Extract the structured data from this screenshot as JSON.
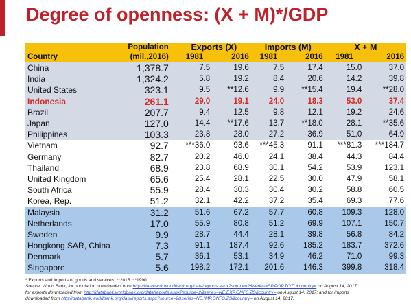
{
  "title": "Degree of openness: (X + M)*/GDP",
  "header": {
    "country": "Country",
    "population_line1": "Population",
    "population_line2": "(mil.,2016)",
    "exports": "Exports (X)",
    "imports": "Imports (M)",
    "xm": "X + M",
    "y1981": "1981",
    "y2016": "2016"
  },
  "rows": [
    {
      "country": "China",
      "pop": "1,378.7",
      "x81": "7.5",
      "x16": "19.6",
      "m81": "7.5",
      "m16": "17.4",
      "t81": "15.0",
      "t16": "37.0",
      "group": "g1"
    },
    {
      "country": "India",
      "pop": "1,324.2",
      "x81": "5.8",
      "x16": "19.2",
      "m81": "8.4",
      "m16": "20.6",
      "t81": "14.2",
      "t16": "39.8",
      "group": "g1"
    },
    {
      "country": "United States",
      "pop": "323.1",
      "x81": "9.5",
      "x16": "**12.6",
      "m81": "9.9",
      "m16": "**15.4",
      "t81": "19.4",
      "t16": "**28.0",
      "group": "g1"
    },
    {
      "country": "Indonesia",
      "pop": "261.1",
      "x81": "29.0",
      "x16": "19.1",
      "m81": "24.0",
      "m16": "18.3",
      "t81": "53.0",
      "t16": "37.4",
      "group": "g1",
      "highlight": true
    },
    {
      "country": "Brazil",
      "pop": "207.7",
      "x81": "9.4",
      "x16": "12.5",
      "m81": "9.8",
      "m16": "12.1",
      "t81": "19.2",
      "t16": "24.6",
      "group": "g1"
    },
    {
      "country": "Japan",
      "pop": "127.0",
      "x81": "14.4",
      "x16": "**17.6",
      "m81": "13.7",
      "m16": "**18.0",
      "t81": "28.1",
      "t16": "**35.6",
      "group": "g1"
    },
    {
      "country": "Philippines",
      "pop": "103.3",
      "x81": "23.8",
      "x16": "28.0",
      "m81": "27.2",
      "m16": "36.9",
      "t81": "51.0",
      "t16": "64.9",
      "group": "g1"
    },
    {
      "country": "Vietnam",
      "pop": "92.7",
      "x81": "***36.0",
      "x16": "93.6",
      "m81": "***45.3",
      "m16": "91.1",
      "t81": "***81.3",
      "t16": "***184.7",
      "group": "g2"
    },
    {
      "country": "Germany",
      "pop": "82.7",
      "x81": "20.2",
      "x16": "46.0",
      "m81": "24.1",
      "m16": "38.4",
      "t81": "44.3",
      "t16": "84.4",
      "group": "g2"
    },
    {
      "country": "Thailand",
      "pop": "68.9",
      "x81": "23.8",
      "x16": "68.9",
      "m81": "30.1",
      "m16": "54.2",
      "t81": "53.9",
      "t16": "123.1",
      "group": "g2"
    },
    {
      "country": "United Kingdom",
      "pop": "65.6",
      "x81": "25.4",
      "x16": "28.1",
      "m81": "22.5",
      "m16": "30.0",
      "t81": "47.9",
      "t16": "58.1",
      "group": "g2"
    },
    {
      "country": "South Africa",
      "pop": "55.9",
      "x81": "28.4",
      "x16": "30.3",
      "m81": "30.4",
      "m16": "30.2",
      "t81": "58.8",
      "t16": "60.5",
      "group": "g2"
    },
    {
      "country": "Korea, Rep.",
      "pop": "51.2",
      "x81": "32.1",
      "x16": "42.2",
      "m81": "37.2",
      "m16": "35.4",
      "t81": "69.3",
      "t16": "77.6",
      "group": "g2"
    },
    {
      "country": "Malaysia",
      "pop": "31.2",
      "x81": "51.6",
      "x16": "67.2",
      "m81": "57.7",
      "m16": "60.8",
      "t81": "109.3",
      "t16": "128.0",
      "group": "g3"
    },
    {
      "country": "Netherlands",
      "pop": "17.0",
      "x81": "55.9",
      "x16": "80.8",
      "m81": "51.2",
      "m16": "69.9",
      "t81": "107.1",
      "t16": "150.7",
      "group": "g3"
    },
    {
      "country": "Sweden",
      "pop": "9.9",
      "x81": "28.7",
      "x16": "44.4",
      "m81": "28.1",
      "m16": "39.8",
      "t81": "56.8",
      "t16": "84.2",
      "group": "g3"
    },
    {
      "country": "Hongkong SAR, China",
      "pop": "7.3",
      "x81": "91.1",
      "x16": "187.4",
      "m81": "92.6",
      "m16": "185.2",
      "t81": "183.7",
      "t16": "372.6",
      "group": "g3"
    },
    {
      "country": "Denmark",
      "pop": "5.7",
      "x81": "36.1",
      "x16": "53.1",
      "m81": "34.9",
      "m16": "46.2",
      "t81": "71.0",
      "t16": "99.3",
      "group": "g3"
    },
    {
      "country": "Singapore",
      "pop": "5.6",
      "x81": "198.2",
      "x16": "172.1",
      "m81": "201.6",
      "m16": "146.3",
      "t81": "399.8",
      "t16": "318.4",
      "group": "g3"
    }
  ],
  "notes": {
    "line1": "* Exports and imports of goods and services.   **2015   ***1990",
    "src_prefix": "Source: World Bank; for population downloaded from ",
    "src_link1": "http://databank.worldbank.org/data/reports.aspx?source=2&series=SP.POP.TOTL&country=",
    "src_suffix1": " on August 14, 2017;",
    "exp_prefix": "for exports downloaded from ",
    "src_link2": "http://databank.worldbank.org/data/reports.aspx?source=2&series=NE.EXP.GNFS.ZS&country=",
    "exp_suffix": " on August 14, 2017; and for imports",
    "imp_prefix": "downloaded from ",
    "src_link3": "http://databank.worldbank.org/data/reports.aspx?source=2&series=NE.IMP.GNFS.ZS&country=",
    "imp_suffix": " on August 14, 2017."
  },
  "colors": {
    "title": "#c0202a",
    "header_bg": "#f7c10b",
    "group1_bg": "#d4d9e6",
    "group2_bg": "#ffffff",
    "group3_bg": "#a9c8ea",
    "highlight": "#d12a1f"
  }
}
